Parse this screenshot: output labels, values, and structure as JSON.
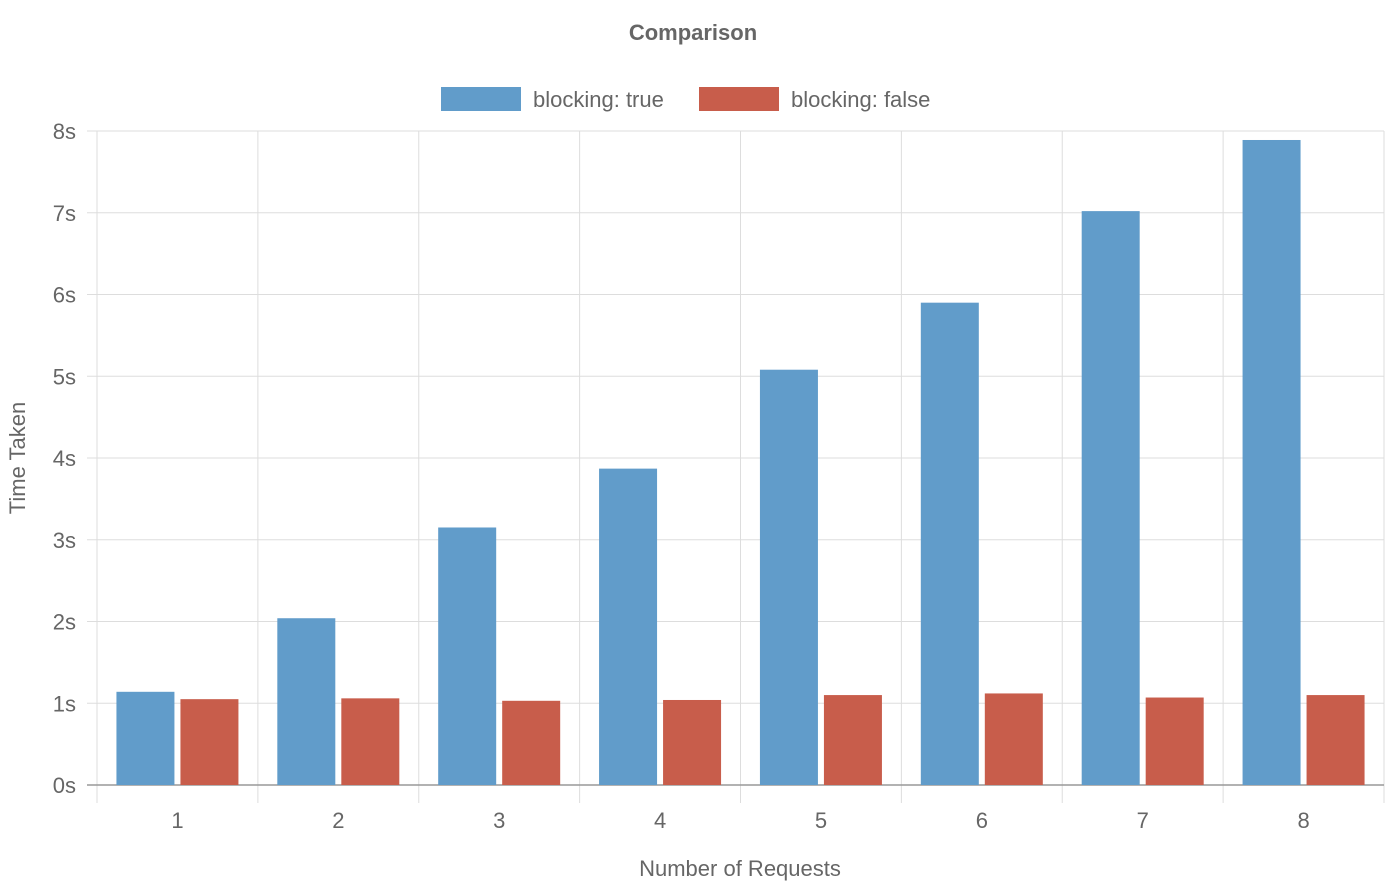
{
  "chart_data": {
    "type": "bar",
    "title": "Comparison",
    "xlabel": "Number of Requests",
    "ylabel": "Time Taken",
    "categories": [
      "1",
      "2",
      "3",
      "4",
      "5",
      "6",
      "7",
      "8"
    ],
    "series": [
      {
        "name": "blocking: true",
        "color": "#619cca",
        "values": [
          1.14,
          2.04,
          3.15,
          3.87,
          5.08,
          5.9,
          7.02,
          7.89
        ]
      },
      {
        "name": "blocking: false",
        "color": "#c85d4b",
        "values": [
          1.05,
          1.06,
          1.03,
          1.04,
          1.1,
          1.12,
          1.07,
          1.1
        ]
      }
    ],
    "ylim": [
      0,
      8
    ],
    "yticks": [
      "0s",
      "1s",
      "2s",
      "3s",
      "4s",
      "5s",
      "6s",
      "7s",
      "8s"
    ],
    "grid": true,
    "legend_position": "top-center"
  }
}
